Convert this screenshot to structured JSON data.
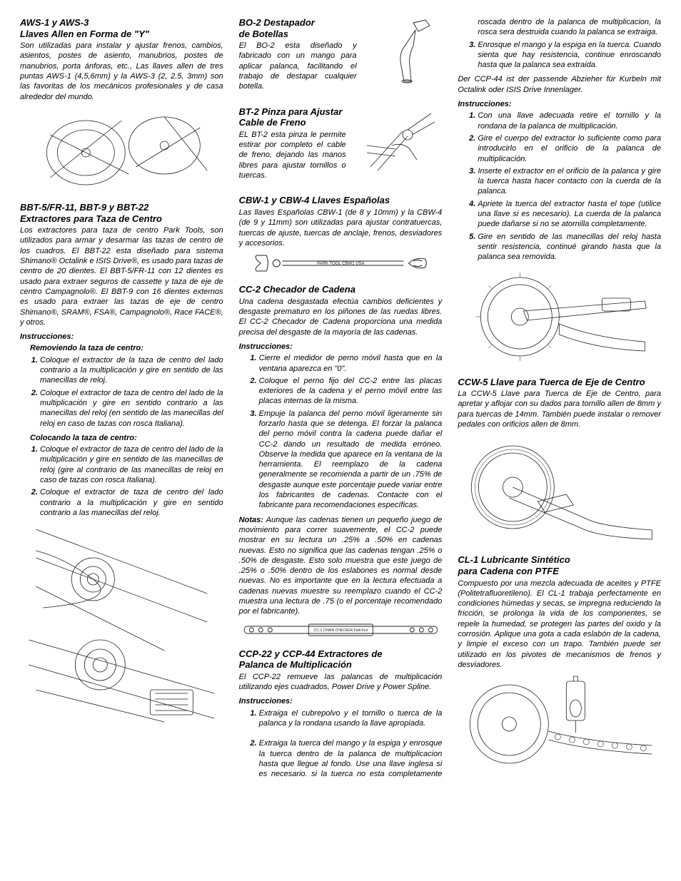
{
  "col1": {
    "aws": {
      "title_l1": "AWS-1 y AWS-3",
      "title_l2": "Llaves Allen en Forma de \"Y\"",
      "body": "Son utilizadas para instalar y ajustar frenos, cambios, asientos, postes de asiento, manubrios, postes de manubrios, porta ánforas, etc., Las llaves allen de tres puntas AWS-1 (4,5,6mm) y la AWS-3 (2, 2.5, 3mm) son las favoritas de los mecánicos profesionales y de casa alrededor del mundo."
    },
    "bbt": {
      "title_l1": "BBT-5/FR-11, BBT-9 y BBT-22",
      "title_l2": "Extractores para Taza de Centro",
      "body": "Los extractores para taza de centro Park Tools, son utilizados para armar y desarmar las tazas de centro de los cuadros. El BBT-22 esta diseñado para sistema Shimano® Octalink e ISIS Drive®, es usado para tazas de centro de 20 dientes. El BBT-5/FR-11 con 12 dientes es usado para extraer seguros de cassette y taza de eje de centro Campagnolo®. El BBT-9 con 16 dientes externos es usado para extraer las tazas de eje de centro Shimano®, SRAM®, FSA®, Campagnolo®, Race FACE®, y otros.",
      "instr_label": "Instrucciones:",
      "remove_label": "Removiendo la taza de centro:",
      "remove_steps": [
        "Coloque el extractor de la taza de centro del lado contrario a la multiplicación y gire en sentido de las manecillas de reloj.",
        "Coloque el extractor de taza de centro del lado de la multiplicación y gire en sentido contrario a las manecillas del reloj (en sentido de las manecillas del reloj en caso de tazas con rosca Italiana)."
      ],
      "install_label": "Colocando la taza de centro:",
      "install_steps": [
        "Coloque el extractor de taza de centro del lado de la multiplicación y gire en sentido de las manecillas de reloj (gire al contrario de las manecillas de reloj en caso de tazas con rosca Italiana).",
        "Coloque el extractor de taza de centro del lado contrario a la multiplicación y gire en sentido contrario a las manecillas del reloj."
      ]
    }
  },
  "col2": {
    "bo2": {
      "title_l1": "BO-2   Destapador",
      "title_l2": "de Botellas",
      "body": "El BO-2 esta diseñado y fabricado con un mango para aplicar palanca, facilitando el trabajo de destapar cualquier botella."
    },
    "bt2": {
      "title_l1": "BT-2 Pinza para Ajustar",
      "title_l2": "Cable de Freno",
      "body": "EL BT-2 esta pinza le permite estirar por completo el cable de freno, dejando las manos libres para ajustar tornillos o tuercas."
    },
    "cbw": {
      "title": "CBW-1 y CBW-4 Llaves Españolas",
      "body": "Las llaves Españolas CBW-1 (de 8 y 10mm) y la CBW-4 (de 9 y 11mm) son utilizadas para ajustar contratuercas, tuercas de ajuste, tuercas de anclaje, frenos, desviadores y accesorios.",
      "tool_label": "PARK TOOL CBW1 USA"
    },
    "cc2": {
      "title": "CC-2 Checador de Cadena",
      "body": "Una cadena desgastada efectúa cambios deficientes y desgaste prematuro en los piñones de las ruedas libres. El CC-2 Checador de Cadena proporciona una medida precisa del desgaste de la mayoría de las cadenas.",
      "instr_label": "Instrucciones:",
      "steps": [
        "Cierre el medidor de perno móvil hasta que en la ventana aparezca en \"0\".",
        "Coloque el perno fijo del CC-2 entre las placas exteriores de la cadena y el perno móvil entre las placas internas de la misma.",
        "Empuje la palanca del perno móvil ligeramente sin forzarlo hasta que se detenga. El forzar la palanca del perno móvil contra la cadena puede dañar el CC-2 dando un resultado de medida erróneo. Observe la medida que aparece en la ventana de la herramienta. El reemplazo de la cadena generalmente se recomienda a partir de un .75% de desgaste aunque este porcentaje puede variar entre los fabricantes de cadenas. Contacte con el fabricante para recomendaciones específicas."
      ],
      "notes_label": "Notas:",
      "notes": "Aunque las cadenas tienen un pequeño juego de movimiento para correr suavemente, el CC-2 puede mostrar en su lectura un .25% a .50% en cadenas nuevas. Esto no significa que las cadenas tengan .25% o .50% de desgaste. Esto solo muestra que este juego de .25% o .50% dentro de los eslabones es normal desde nuevas. No es importante que en la lectura efectuada a cadenas nuevas muestre su reemplazo cuando el CC-2 muestra una lectura de .75 (o el porcentaje recomendado por el fabricante).",
      "chain_label": "CC-2 CHAIN CHECKER ParkTool"
    },
    "ccp": {
      "title_l1": "CCP-22 y CCP-44 Extractores de",
      "title_l2": "Palanca de Multiplicación",
      "body": "El CCP-22 remueve las palancas de multiplicación utilizando ejes cuadrados, Power Drive y Power Spline.",
      "instr_label": "Instrucciones:",
      "steps": [
        "Extraiga el cubrepolvo y el tornillo o tuerca de la palanca y la rondana usando la llave apropiada."
      ]
    }
  },
  "col3": {
    "ccp_cont_steps": [
      "Extraiga la tuerca del mango y la espiga y enrosque la tuerca dentro de la palanca de multiplicacion hasta que llegue al fondo. Use una llave inglesa si es necesario. si la tuerca no esta completamente roscada dentro de la palanca de multiplicacion, la rosca sera destruida cuando la palanca se extraiga.",
      "Enrosque el mango y la espiga en la tuerca. Cuando sienta que hay resistencia, continue enroscando hasta que la palanca sea extraida."
    ],
    "ccp_german": "Der CCP-44 ist der passende Abzieher für Kurbeln mit Octalink oder ISIS Drive Innenlager.",
    "ccp_instr2_label": "Instrucciones:",
    "ccp_instr2_steps": [
      "Con una llave adecuada retire el tornillo y la rondana de la palanca de multiplicación.",
      "Gire el cuerpo del extractor lo suficiente como para introducirlo en el orificio de la palanca de multiplicación.",
      "Inserte el extractor en el orificio de la palanca y gire la tuerca hasta hacer contacto con la cuerda de la palanca.",
      "Apriete la tuerca del extractor hasta el tope (utilice una llave si es necesario). La cuerda de la palanca puede dañarse si no se atornilla completamente.",
      "Gire en sentido de las manecillas del reloj hasta sentir resistencia, continué girando hasta que la palanca sea removida."
    ],
    "ccw5": {
      "title": "CCW-5 Llave para Tuerca de Eje de Centro",
      "body": "La CCW-5 Llave para Tuerca de Eje de Centro, para apretar y aflojar con su dados para tornillo allen de 8mm y para tuercas de 14mm. También puede instalar o remover pedales con orificios allen de 8mm."
    },
    "cl1": {
      "title_l1": "CL-1 Lubricante Sintético",
      "title_l2": "para Cadena con PTFE",
      "body": "Compuesto por una mezcla adecuada de aceites y PTFE (Politetrafluoretileno). El CL-1 trabaja perfectamente en condiciones húmedas y secas, se impregna reduciendo la fricción, se prolonga la vida de los componentes, se repele la humedad, se protegen las partes del oxido y la corrosión. Aplique una gota a cada eslabón de la cadena, y limpie el exceso con un trapo. También puede ser utilizado en los pivotes de mecanismos de frenos y  desviadores."
    }
  },
  "style": {
    "body_color": "#000000",
    "bg_color": "#ffffff",
    "heading_fontsize": 13,
    "body_fontsize": 11,
    "line_art_stroke": "#222222"
  }
}
